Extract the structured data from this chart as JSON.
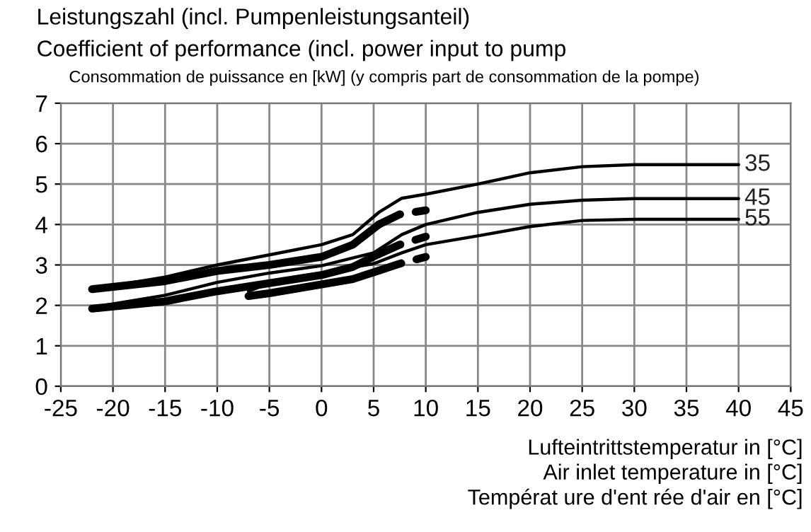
{
  "chart_data": {
    "type": "line",
    "title": "Leistungszahl (incl. Pumpenleistungsanteil)",
    "subtitle": "Coefficient of performance (incl. power input to pump",
    "annotations": [
      "Consommation de puissance en [kW] (y compris part de consommation de la pompe)"
    ],
    "xlabel": "Lufteintrittstemperatur in [°C]\nAir inlet temperature in [°C]\nTempérat ure d'ent rée d'air en [°C]",
    "xlim": [
      -25,
      45
    ],
    "xticks": [
      -25,
      -20,
      -15,
      -10,
      -5,
      0,
      5,
      10,
      15,
      20,
      25,
      30,
      35,
      40,
      45
    ],
    "ylim": [
      0,
      7
    ],
    "yticks": [
      0,
      1,
      2,
      3,
      4,
      5,
      6,
      7
    ],
    "grid": true,
    "legend": false,
    "marker": "none",
    "series": [
      {
        "name": "35",
        "color": "#000000",
        "line_style": "solid",
        "x": [
          -22,
          -15,
          -10,
          -5,
          0,
          3,
          5.5,
          7.7,
          10,
          15,
          20,
          25,
          30,
          40
        ],
        "values": [
          2.4,
          2.7,
          3.0,
          3.25,
          3.5,
          3.75,
          4.3,
          4.65,
          4.75,
          5.0,
          5.28,
          5.43,
          5.48,
          5.48
        ]
      },
      {
        "name": "45",
        "color": "#000000",
        "line_style": "solid",
        "x": [
          -22,
          -15,
          -10,
          -5,
          0,
          5,
          7.7,
          10,
          15,
          20,
          25,
          30,
          40
        ],
        "values": [
          1.95,
          2.25,
          2.57,
          2.8,
          2.98,
          3.3,
          3.75,
          4.0,
          4.3,
          4.5,
          4.6,
          4.64,
          4.64
        ]
      },
      {
        "name": "55",
        "color": "#000000",
        "line_style": "solid",
        "x": [
          -7,
          -5,
          0,
          5,
          7.7,
          10,
          15,
          20,
          25,
          30,
          40
        ],
        "values": [
          2.35,
          2.55,
          2.8,
          3.03,
          3.3,
          3.5,
          3.72,
          3.95,
          4.1,
          4.13,
          4.13
        ]
      },
      {
        "color": "#000000",
        "line_style": "solid",
        "x": [
          -22,
          -15,
          -10,
          -5,
          0,
          3,
          5.5
        ],
        "values": [
          2.4,
          2.6,
          2.85,
          3.0,
          3.2,
          3.5,
          4.0
        ]
      },
      {
        "color": "#000000",
        "line_style": "solid",
        "x": [
          -22,
          -15,
          -10,
          -5,
          0,
          3,
          5.5
        ],
        "values": [
          1.92,
          2.1,
          2.35,
          2.55,
          2.75,
          2.95,
          3.27
        ]
      },
      {
        "color": "#000000",
        "line_style": "solid",
        "x": [
          -7,
          -5,
          0,
          3,
          5.5
        ],
        "values": [
          2.23,
          2.3,
          2.52,
          2.65,
          2.86
        ]
      },
      {
        "color": "#000000",
        "line_style": "dashed",
        "x": [
          5.5,
          7.5,
          10
        ],
        "values": [
          4.0,
          4.25,
          4.35
        ]
      },
      {
        "color": "#000000",
        "line_style": "dashed",
        "x": [
          5.5,
          7.5,
          10
        ],
        "values": [
          3.27,
          3.5,
          3.7
        ]
      },
      {
        "color": "#000000",
        "line_style": "dashed",
        "x": [
          5.5,
          7.5,
          10
        ],
        "values": [
          2.86,
          3.03,
          3.2
        ]
      }
    ]
  }
}
